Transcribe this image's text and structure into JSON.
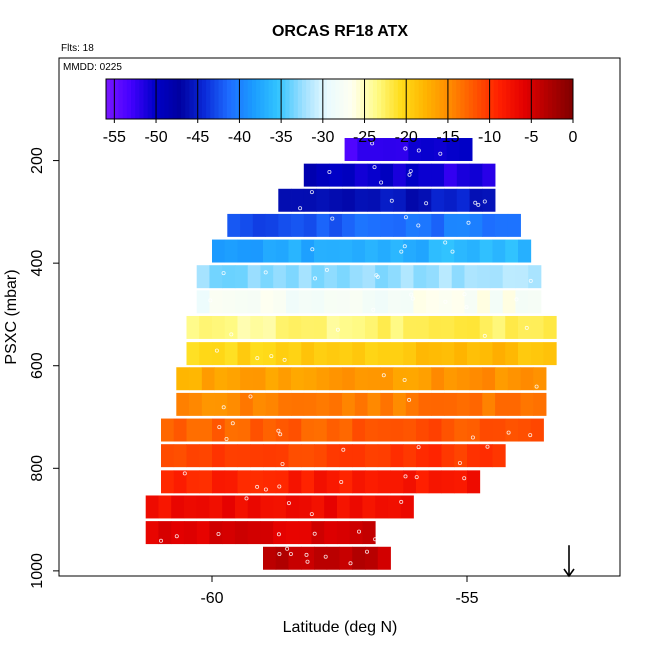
{
  "chart_data": {
    "type": "heatmap",
    "title": "ORCAS RF18 ATX",
    "flights_label": "Flts: 18",
    "date_label": "MMDD: 0225",
    "xlabel": "Latitude (deg N)",
    "ylabel": "PSXC (mbar)",
    "xlim": [
      -63,
      -52
    ],
    "ylim": [
      1010,
      0
    ],
    "x_ticks": [
      -60,
      -55
    ],
    "y_ticks": [
      200,
      400,
      600,
      800,
      1000
    ],
    "colorbar": {
      "range": [
        -56,
        0
      ],
      "ticks": [
        -55,
        -50,
        -45,
        -40,
        -35,
        -30,
        -25,
        -20,
        -15,
        -10,
        -5,
        0
      ],
      "colors": [
        "#7a17ff",
        "#4400ff",
        "#0000c8",
        "#0000a0",
        "#0a2ad8",
        "#1d6cff",
        "#1b9cff",
        "#32c4ff",
        "#9cdfff",
        "#e9fbff",
        "#fffff0",
        "#fffb88",
        "#ffdd1a",
        "#ffb400",
        "#ff8a00",
        "#ff5500",
        "#ff1f00",
        "#e40000",
        "#b00000",
        "#800000"
      ]
    },
    "rows": [
      {
        "p": 178,
        "x": [
          -57.4,
          -54.8
        ],
        "t_left": -53,
        "t_right": -50
      },
      {
        "p": 228,
        "x": [
          -58.2,
          -54.5
        ],
        "t_left": -49,
        "t_right": -52
      },
      {
        "p": 277,
        "x": [
          -58.7,
          -54.5
        ],
        "t_left": -47,
        "t_right": -45
      },
      {
        "p": 326,
        "x": [
          -59.7,
          -54.0
        ],
        "t_left": -43,
        "t_right": -40
      },
      {
        "p": 376,
        "x": [
          -60.0,
          -53.7
        ],
        "t_left": -38,
        "t_right": -36
      },
      {
        "p": 426,
        "x": [
          -60.3,
          -53.5
        ],
        "t_left": -33,
        "t_right": -32
      },
      {
        "p": 475,
        "x": [
          -60.3,
          -53.5
        ],
        "t_left": -28,
        "t_right": -27
      },
      {
        "p": 525,
        "x": [
          -60.5,
          -53.3
        ],
        "t_left": -24,
        "t_right": -22
      },
      {
        "p": 576,
        "x": [
          -60.5,
          -53.3
        ],
        "t_left": -20,
        "t_right": -18
      },
      {
        "p": 625,
        "x": [
          -60.7,
          -53.5
        ],
        "t_left": -17,
        "t_right": -15
      },
      {
        "p": 675,
        "x": [
          -60.7,
          -53.5
        ],
        "t_left": -15,
        "t_right": -13
      },
      {
        "p": 725,
        "x": [
          -61.0,
          -53.5
        ],
        "t_left": -13,
        "t_right": -11
      },
      {
        "p": 775,
        "x": [
          -61.0,
          -54.3
        ],
        "t_left": -11,
        "t_right": -10
      },
      {
        "p": 826,
        "x": [
          -61.0,
          -54.8
        ],
        "t_left": -9,
        "t_right": -8
      },
      {
        "p": 875,
        "x": [
          -61.3,
          -56.1
        ],
        "t_left": -7,
        "t_right": -7
      },
      {
        "p": 925,
        "x": [
          -61.3,
          -56.7
        ],
        "t_left": -6,
        "t_right": -5
      },
      {
        "p": 975,
        "x": [
          -59.0,
          -56.5
        ],
        "t_left": -4,
        "t_right": -4
      }
    ],
    "arrow": {
      "x": -53.0,
      "p_from": 950,
      "p_to": 1010
    }
  }
}
